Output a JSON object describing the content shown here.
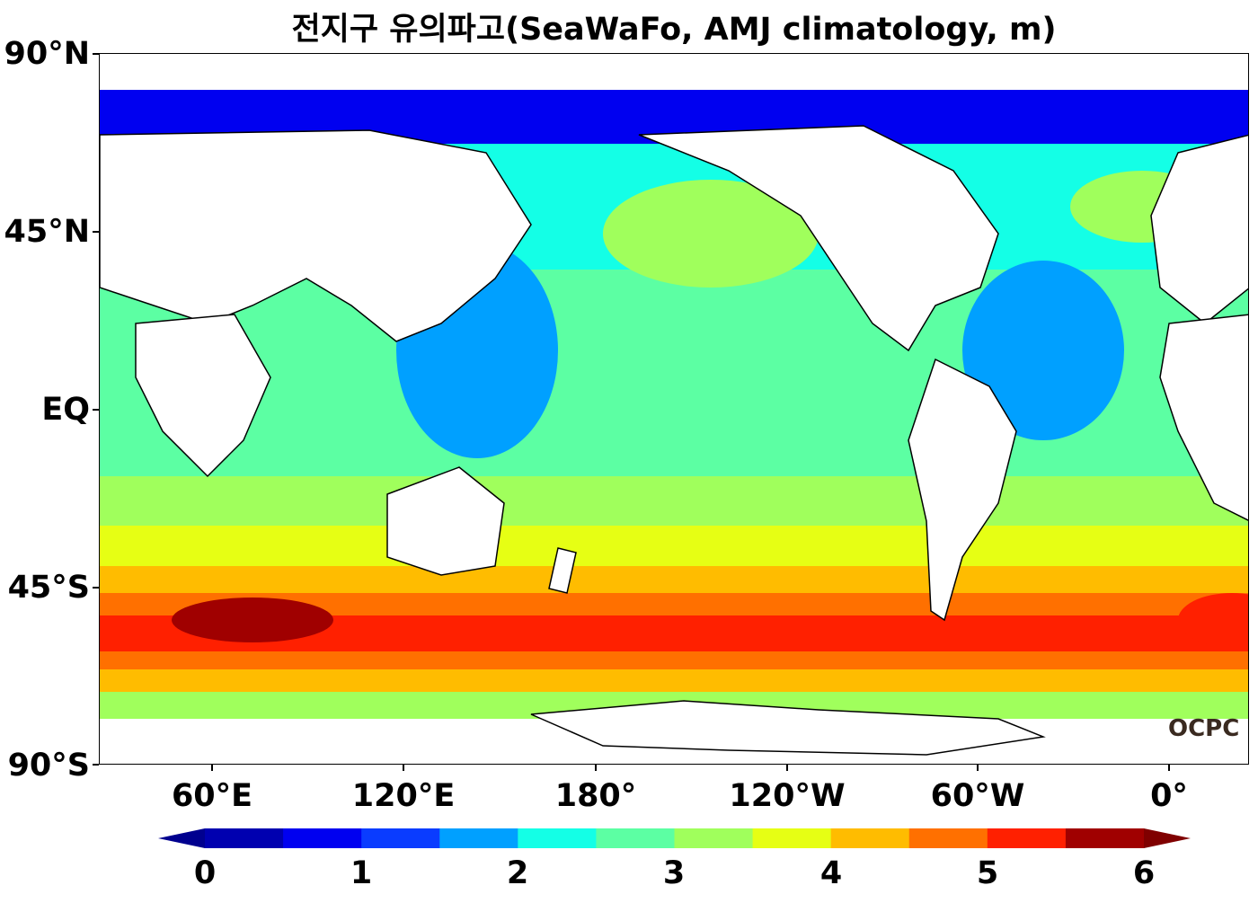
{
  "title": "전지구 유의파고(SeaWaFo, AMJ climatology, m)",
  "y_axis_labels": [
    "90°N",
    "45°N",
    "EQ",
    "45°S",
    "90°S"
  ],
  "x_axis_labels": [
    "60°E",
    "120°E",
    "180°",
    "120°W",
    "60°W",
    "0°"
  ],
  "colorbar": {
    "tick_labels": [
      "0",
      "1",
      "2",
      "3",
      "4",
      "5",
      "6"
    ],
    "levels": [
      0,
      0.5,
      1.0,
      1.5,
      2.0,
      2.5,
      3.0,
      3.5,
      4.0,
      4.5,
      5.0,
      5.5,
      6.0
    ],
    "under_color": "#00008f",
    "over_color": "#800000",
    "colors": [
      "#0000b0",
      "#0000f0",
      "#0a3cff",
      "#00a0ff",
      "#14ffe6",
      "#5cffa3",
      "#a0ff5c",
      "#e6ff14",
      "#ffbc00",
      "#ff7000",
      "#ff2000",
      "#a00000"
    ]
  },
  "logo_text": "OCPC"
}
